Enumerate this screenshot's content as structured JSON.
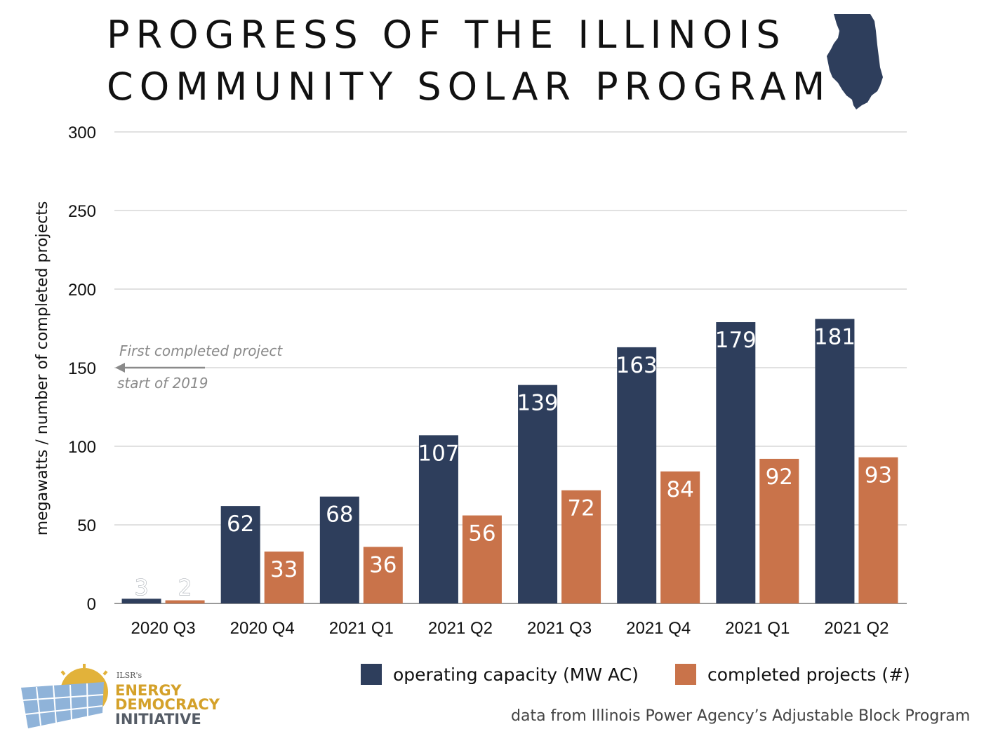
{
  "title_lines": [
    "PROGRESS OF THE ILLINOIS",
    "COMMUNITY SOLAR PROGRAM"
  ],
  "colors": {
    "capacity": "#2e3e5c",
    "projects": "#c9734a",
    "gridline": "#cfcfcf",
    "annotation": "#8a8a8a",
    "state_shape": "#2e3e5c"
  },
  "icons": {
    "state": "illinois-state-icon",
    "logo": "ilsr-energy-democracy-logo"
  },
  "chart_data": {
    "type": "bar",
    "title": "PROGRESS OF THE ILLINOIS COMMUNITY SOLAR PROGRAM",
    "xlabel": "",
    "ylabel": "megawatts / number of completed projects",
    "ylim": [
      0,
      300
    ],
    "yticks": [
      0,
      50,
      100,
      150,
      200,
      250,
      300
    ],
    "grid": true,
    "categories": [
      "2020 Q3",
      "2020 Q4",
      "2021 Q1",
      "2021 Q2",
      "2021 Q3",
      "2021 Q4",
      "2021 Q1",
      "2021 Q2"
    ],
    "series": [
      {
        "name": "operating capacity (MW AC)",
        "values": [
          3,
          62,
          68,
          107,
          139,
          163,
          179,
          181
        ]
      },
      {
        "name": "completed projects (#)",
        "values": [
          2,
          33,
          36,
          56,
          72,
          84,
          92,
          93
        ]
      }
    ],
    "legend_position": "bottom-right",
    "annotation": {
      "line1": "First completed project",
      "line2": "start of 2019",
      "value": 150
    }
  },
  "source_note": "data from Illinois Power Agency’s Adjustable Block Program",
  "logo": {
    "small_text": "ILSR's",
    "line1": "ENERGY",
    "line2": "DEMOCRACY",
    "line3": "INITIATIVE"
  }
}
